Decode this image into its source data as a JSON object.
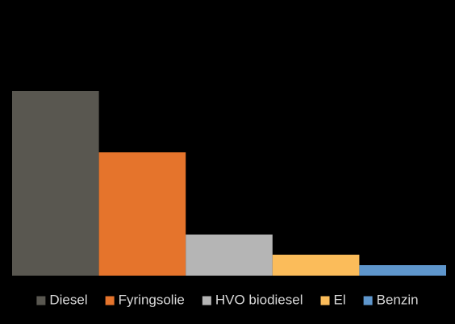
{
  "chart_data": {
    "type": "bar",
    "series": [
      {
        "name": "Diesel",
        "color": "#595750",
        "values": [
          229
        ]
      },
      {
        "name": "Fyringsolie",
        "color": "#e5742c",
        "values": [
          153
        ]
      },
      {
        "name": "HVO biodiesel",
        "color": "#b5b5b5",
        "values": [
          51
        ]
      },
      {
        "name": "El",
        "color": "#fbbc5a",
        "values": [
          26
        ]
      },
      {
        "name": "Benzin",
        "color": "#5e96cc",
        "values": [
          13
        ]
      }
    ],
    "ylim": [
      0,
      320
    ],
    "legend": "bottom"
  }
}
